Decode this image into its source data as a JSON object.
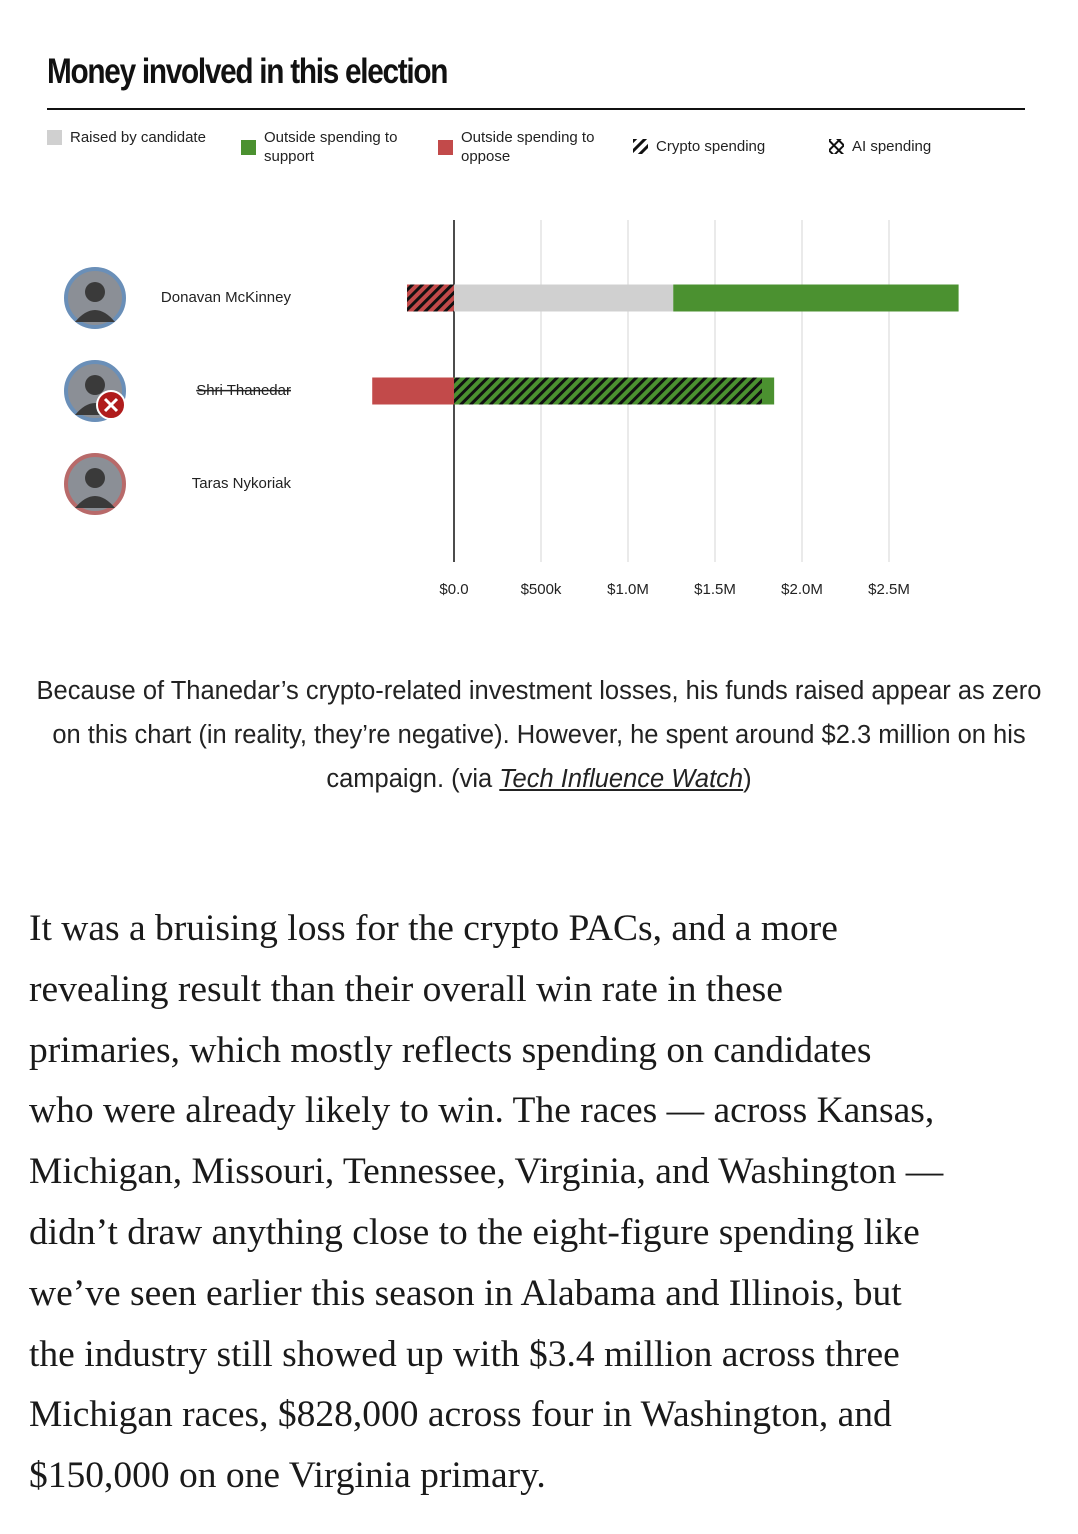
{
  "chart_data": {
    "type": "diverging-bar",
    "title": "Money involved in this election",
    "categories": [
      "Donavan McKinney",
      "Shri Thanedar",
      "Taras Nykoriak"
    ],
    "eliminated": [
      false,
      true,
      false
    ],
    "avatar_colors": [
      "#6a8fb8",
      "#6a8fb8",
      "#b86a6a"
    ],
    "series": [
      {
        "name": "Raised by candidate",
        "color": "#d0d0d0",
        "values": [
          1260000,
          0,
          0
        ]
      },
      {
        "name": "Outside spending to support",
        "color": "#4b9130",
        "values": [
          1640000,
          1840000,
          0
        ]
      },
      {
        "name": "Outside spending to oppose",
        "color": "#c24a4a",
        "values": [
          -270000,
          -470000,
          0
        ]
      }
    ],
    "overlays": [
      {
        "name": "Crypto spending",
        "pattern": "hatch",
        "support": [
          0,
          1770000,
          0
        ],
        "oppose": [
          -270000,
          0,
          0
        ]
      },
      {
        "name": "AI spending",
        "pattern": "cross"
      }
    ],
    "xlim": [
      -500000,
      3000000
    ],
    "xticks": [
      {
        "value": 0,
        "label": "$0.0"
      },
      {
        "value": 500000,
        "label": "$500k"
      },
      {
        "value": 1000000,
        "label": "$1.0M"
      },
      {
        "value": 1500000,
        "label": "$1.5M"
      },
      {
        "value": 2000000,
        "label": "$2.0M"
      },
      {
        "value": 2500000,
        "label": "$2.5M"
      }
    ],
    "grid": true
  },
  "caption": {
    "text": "Because of Thanedar’s crypto-related investment losses, his funds raised appear as zero on this chart (in reality, they’re negative). However, he spent around $2.3 million on his campaign. (via ",
    "link": "Tech Influence Watch",
    "end": ")"
  },
  "article": {
    "lines": [
      "It was a bruising loss for the crypto PACs, and a more",
      "revealing result than their overall win rate in these",
      "primaries, which mostly reflects spending on candidates",
      "who were already likely to win. The races — across Kansas,",
      "Michigan, Missouri, Tennessee, Virginia, and Washington —",
      "didn’t draw anything close to the eight-figure spending like",
      "we’ve seen earlier this season in Alabama and Illinois, but",
      "the industry still showed up with $3.4 million across three",
      "Michigan races, $828,000 across four in Washington, and",
      "$150,000 on one Virginia primary."
    ]
  }
}
